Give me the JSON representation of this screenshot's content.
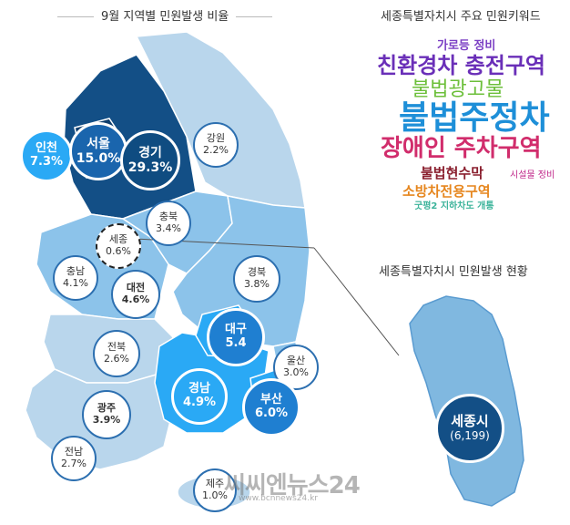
{
  "titles": {
    "map_title": "9월 지역별 민원발생 비율",
    "keyword_title": "세종특별자치시 주요 민원키워드",
    "sejong_title": "세종특별자치시 민원발생 현황"
  },
  "regions": {
    "seoul": {
      "name": "서울",
      "pct": "15.0%"
    },
    "gyeonggi": {
      "name": "경기",
      "pct": "29.3%"
    },
    "incheon": {
      "name": "인천",
      "pct": "7.3%"
    },
    "gangwon": {
      "name": "강원",
      "pct": "2.2%"
    },
    "chungbuk": {
      "name": "충북",
      "pct": "3.4%"
    },
    "sejong": {
      "name": "세종",
      "pct": "0.6%"
    },
    "chungnam": {
      "name": "충남",
      "pct": "4.1%"
    },
    "daejeon": {
      "name": "대전",
      "pct": "4.6%"
    },
    "gyeongbuk": {
      "name": "경북",
      "pct": "3.8%"
    },
    "jeonbuk": {
      "name": "전북",
      "pct": "2.6%"
    },
    "daegu": {
      "name": "대구",
      "pct": "5.4"
    },
    "ulsan": {
      "name": "울산",
      "pct": "3.0%"
    },
    "gwangju": {
      "name": "광주",
      "pct": "3.9%"
    },
    "gyeongnam": {
      "name": "경남",
      "pct": "4.9%"
    },
    "busan": {
      "name": "부산",
      "pct": "6.0%"
    },
    "jeonnam": {
      "name": "전남",
      "pct": "2.7%"
    },
    "jeju": {
      "name": "제주",
      "pct": "1.0%"
    }
  },
  "sejong_detail": {
    "name": "세종시",
    "count": "(6,199)"
  },
  "keywords": [
    {
      "text": "가로등 정비",
      "color": "#7b3fc4"
    },
    {
      "text": "친환경차 충전구역",
      "color": "#6a2fb8"
    },
    {
      "text": "불법광고물",
      "color": "#6cbf3a"
    },
    {
      "text": "불법주정차",
      "color": "#1e8fd8"
    },
    {
      "text": "장애인 주차구역",
      "color": "#d12d6c"
    },
    {
      "text": "불법현수막",
      "color": "#8a1f2e"
    },
    {
      "text": "시설물 정비",
      "color": "#c0288a"
    },
    {
      "text": "소방차전용구역",
      "color": "#e6861e"
    },
    {
      "text": "굿평2 지하차도 개통",
      "color": "#3bb39a"
    }
  ],
  "watermark": {
    "brand": "씨씨엔뉴스24",
    "url": "www.bcnnews24.kr"
  },
  "colors": {
    "light": "#b9d6ec",
    "mid": "#8cc3ea",
    "bright": "#2aa9f5",
    "dark": "#134f86"
  }
}
